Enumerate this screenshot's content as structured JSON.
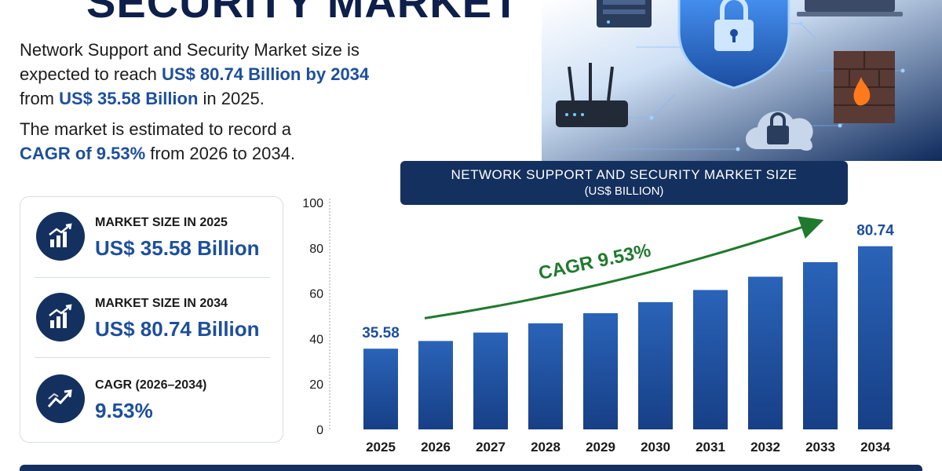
{
  "title": "SECURITY MARKET",
  "intro": {
    "line1_a": "Network Support and Security Market size is",
    "line2_a": "expected to reach ",
    "line2_hl": "US$ 80.74 Billion by 2034",
    "line3_a": "from ",
    "line3_hl": "US$ 35.58 Billion",
    "line3_b": " in 2025.",
    "line4_a": "The market is estimated to record a",
    "line5_hl": "CAGR  of 9.53%",
    "line5_b": " from 2026 to 2034."
  },
  "stats": [
    {
      "label": "MARKET SIZE IN 2025",
      "value": "US$ 35.58 Billion",
      "icon": "bar-growth-icon"
    },
    {
      "label": "MARKET SIZE IN 2034",
      "value": "US$ 80.74 Billion",
      "icon": "bar-growth-icon"
    },
    {
      "label": "CAGR (2026–2034)",
      "value": "9.53%",
      "icon": "trend-up-icon"
    }
  ],
  "chart_banner": {
    "line1": "NETWORK SUPPORT AND SECURITY MARKET SIZE",
    "line2": "(US$ BILLION)"
  },
  "colors": {
    "navy": "#14305e",
    "accent_blue": "#1d4f9c",
    "bar_blue": "#2358a8",
    "cagr_green": "#1f7a2e"
  },
  "chart_data": {
    "type": "bar",
    "title": "NETWORK SUPPORT AND SECURITY MARKET SIZE (US$ BILLION)",
    "categories": [
      "2025",
      "2026",
      "2027",
      "2028",
      "2029",
      "2030",
      "2031",
      "2032",
      "2033",
      "2034"
    ],
    "values": [
      35.58,
      38.97,
      42.69,
      46.76,
      51.21,
      56.09,
      61.44,
      67.3,
      73.71,
      80.74
    ],
    "data_labels": [
      {
        "category": "2025",
        "text": "35.58"
      },
      {
        "category": "2034",
        "text": "80.74"
      }
    ],
    "annotation": "CAGR 9.53%",
    "ylim": [
      0,
      100
    ],
    "yticks": [
      0,
      20,
      40,
      60,
      80,
      100
    ],
    "xlabel": "",
    "ylabel": "",
    "grid": false,
    "legend": "none"
  }
}
